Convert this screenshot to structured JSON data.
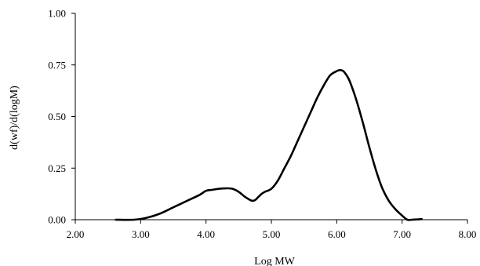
{
  "chart_data": {
    "type": "line",
    "title": "",
    "xlabel": "Log MW",
    "ylabel": "d(wf)/d(logM)",
    "xlim": [
      2.0,
      8.0
    ],
    "ylim": [
      0.0,
      1.0
    ],
    "x_ticks": [
      "2.00",
      "3.00",
      "4.00",
      "5.00",
      "6.00",
      "7.00",
      "8.00"
    ],
    "y_ticks": [
      "0.00",
      "0.25",
      "0.50",
      "0.75",
      "1.00"
    ],
    "grid": false,
    "legend": "none",
    "line_color": "#000000",
    "series": [
      {
        "x": [
          2.62,
          2.9,
          3.1,
          3.3,
          3.5,
          3.7,
          3.9,
          4.0,
          4.1,
          4.2,
          4.3,
          4.4,
          4.5,
          4.6,
          4.7,
          4.75,
          4.8,
          4.85,
          4.9,
          5.0,
          5.1,
          5.2,
          5.3,
          5.4,
          5.5,
          5.6,
          5.7,
          5.8,
          5.9,
          6.0,
          6.05,
          6.1,
          6.15,
          6.2,
          6.3,
          6.4,
          6.5,
          6.6,
          6.7,
          6.8,
          6.9,
          7.0,
          7.08,
          7.15,
          7.3
        ],
        "y": [
          0.0,
          0.0,
          0.01,
          0.03,
          0.06,
          0.09,
          0.12,
          0.14,
          0.145,
          0.15,
          0.152,
          0.15,
          0.135,
          0.11,
          0.092,
          0.095,
          0.11,
          0.125,
          0.135,
          0.15,
          0.19,
          0.25,
          0.31,
          0.38,
          0.45,
          0.52,
          0.59,
          0.65,
          0.7,
          0.72,
          0.725,
          0.72,
          0.7,
          0.67,
          0.58,
          0.47,
          0.35,
          0.24,
          0.15,
          0.09,
          0.05,
          0.02,
          0.0,
          0.0,
          0.003
        ]
      }
    ]
  }
}
